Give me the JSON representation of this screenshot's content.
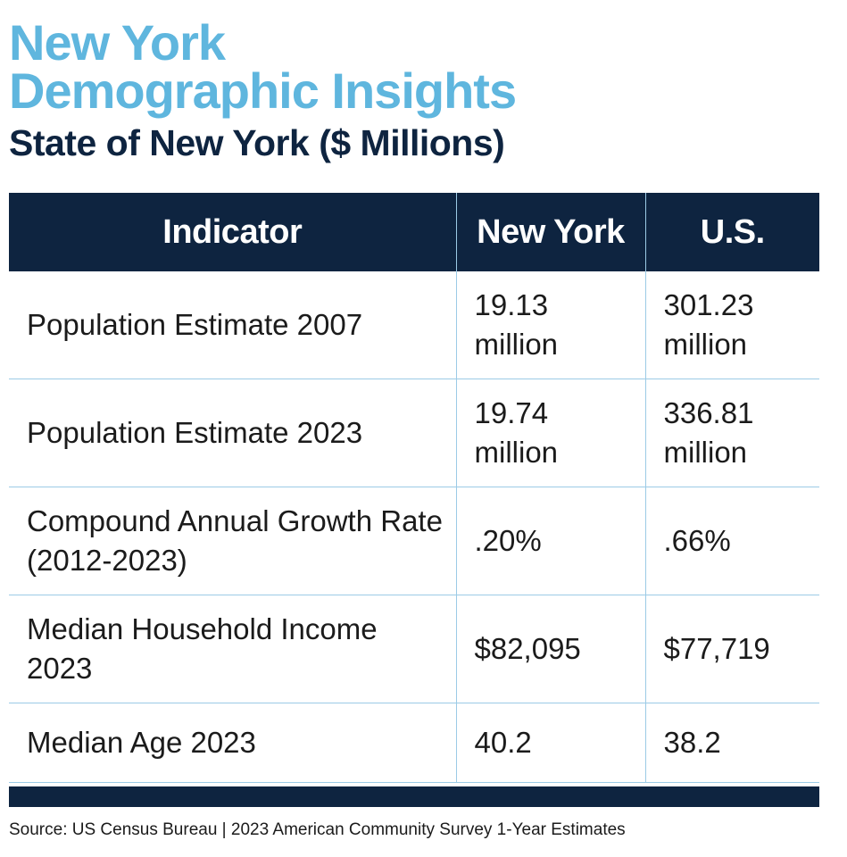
{
  "header": {
    "title_line1": "New York",
    "title_line2": "Demographic Insights",
    "subtitle": "State of New York ($ Millions)"
  },
  "table": {
    "columns": [
      "Indicator",
      "New York",
      "U.S."
    ],
    "rows": [
      {
        "indicator": "Population Estimate 2007",
        "new_york": "19.13 million",
        "us": "301.23 million"
      },
      {
        "indicator": "Population Estimate 2023",
        "new_york": "19.74 million",
        "us": "336.81 million"
      },
      {
        "indicator": "Compound Annual Growth Rate (2012-2023)",
        "new_york": ".20%",
        "us": ".66%"
      },
      {
        "indicator": "Median Household Income 2023",
        "new_york": "$82,095",
        "us": "$77,719"
      },
      {
        "indicator": "Median Age 2023",
        "new_york": "40.2",
        "us": "38.2"
      }
    ]
  },
  "footer": {
    "source": "Source: US Census Bureau | 2023 American Community Survey 1-Year Estimates"
  },
  "colors": {
    "title_blue": "#5fb6de",
    "navy": "#0e2440",
    "rule": "#9ccbe6"
  }
}
